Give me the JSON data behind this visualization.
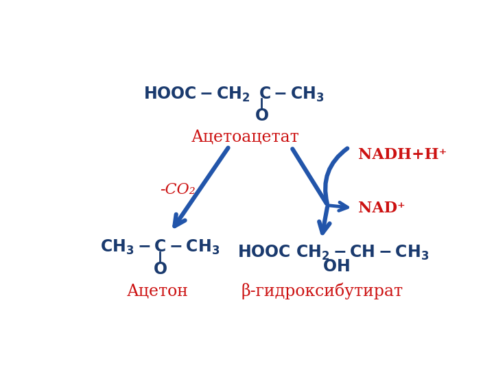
{
  "bg_color": "#ffffff",
  "dark_blue": "#1a3a6e",
  "red": "#cc1111",
  "arrow_color": "#2255aa",
  "acetoacetate_label": "Ацетоацетат",
  "acetone_label": "Ацетон",
  "beta_label": "β-гидроксибутират",
  "co2_label": "-CO₂",
  "nadh_label": "NADH+H⁺",
  "nad_label": "NAD⁺"
}
